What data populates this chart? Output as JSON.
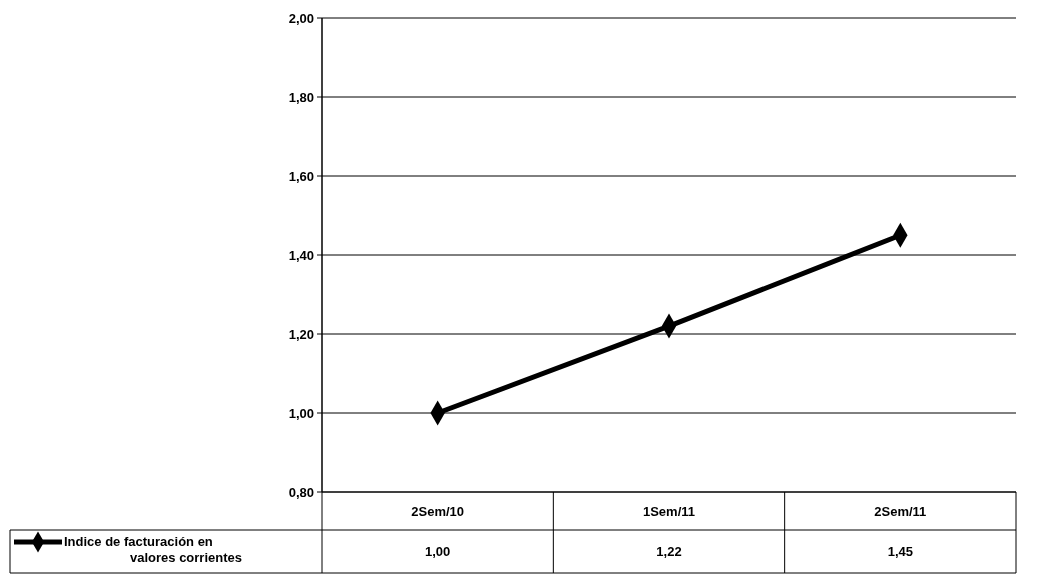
{
  "chart_data": {
    "type": "line",
    "categories": [
      "2Sem/10",
      "1Sem/11",
      "2Sem/11"
    ],
    "series": [
      {
        "name": "Indice de facturación en valores corrientes",
        "color": "#000000",
        "values": [
          1.0,
          1.22,
          1.45
        ],
        "value_labels": [
          "1,00",
          "1,22",
          "1,45"
        ]
      }
    ],
    "ylim": [
      0.8,
      2.0
    ],
    "yticks": [
      {
        "value": 0.8,
        "label": "0,80"
      },
      {
        "value": 1.0,
        "label": "1,00"
      },
      {
        "value": 1.2,
        "label": "1,20"
      },
      {
        "value": 1.4,
        "label": "1,40"
      },
      {
        "value": 1.6,
        "label": "1,60"
      },
      {
        "value": 1.8,
        "label": "1,80"
      },
      {
        "value": 2.0,
        "label": "2,00"
      }
    ],
    "grid": "y",
    "legend": "bottom left",
    "marker": "diamond",
    "line_style": "solid"
  }
}
